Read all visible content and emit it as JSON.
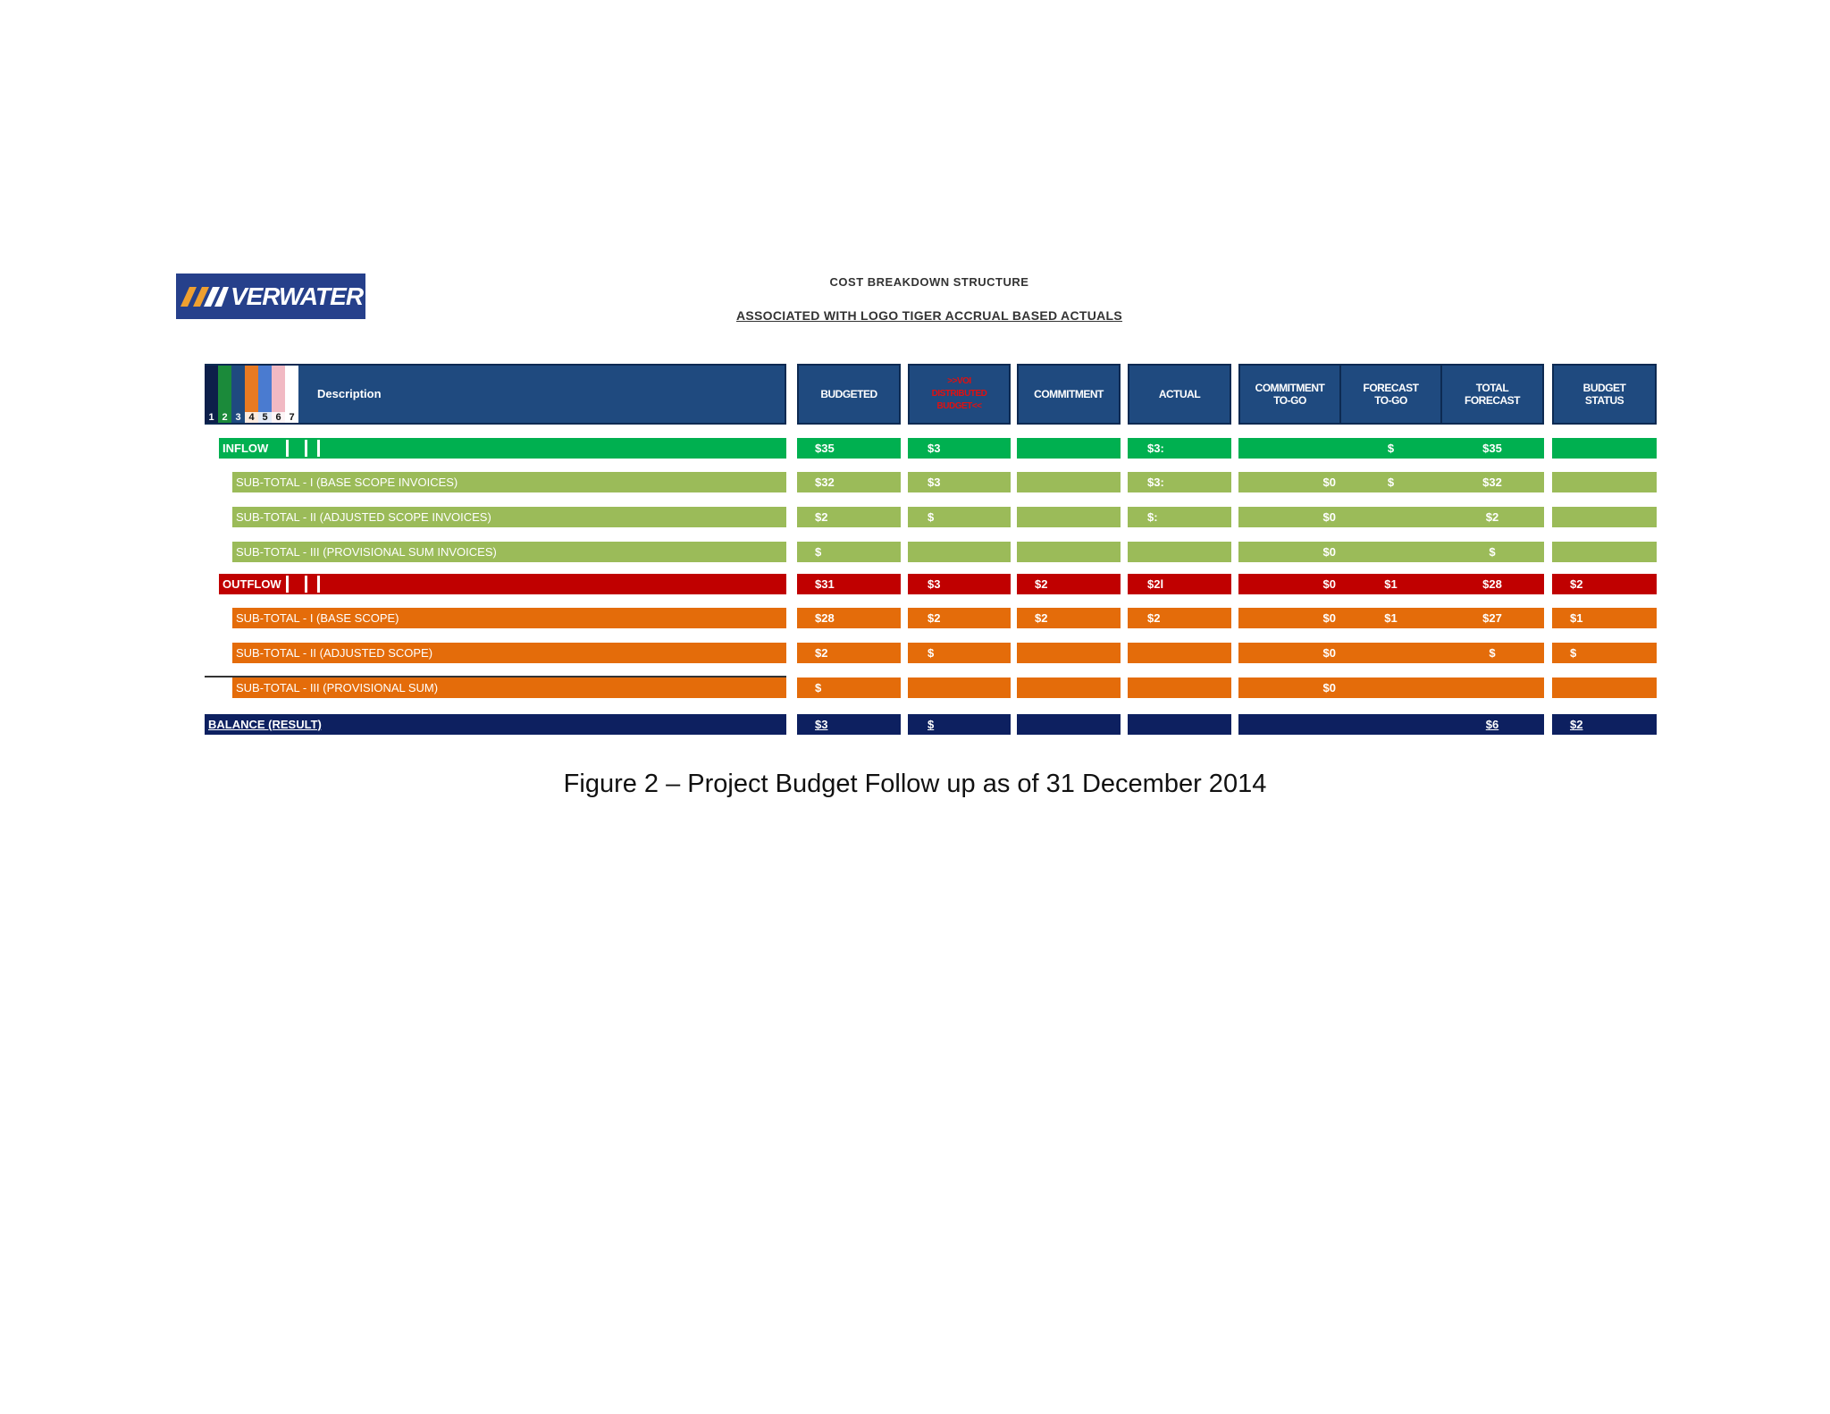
{
  "logo": {
    "text": "VERWATER"
  },
  "titles": {
    "heading": "COST BREAKDOWN STRUCTURE",
    "subheading": "ASSOCIATED WITH LOGO TIGER ACCRUAL BASED ACTUALS"
  },
  "levels": {
    "numbers": [
      "1",
      "2",
      "3",
      "4",
      "5",
      "6",
      "7"
    ],
    "colors": [
      "#0d1f4a",
      "#1b8a3a",
      "#1f4a7f",
      "#e87a22",
      "#4a7bd0",
      "#f1b9c3",
      "#ffffff"
    ]
  },
  "headers": {
    "description": "Description",
    "budgeted": "BUDGETED",
    "vo_line1": ">>VOI",
    "vo_line2": "DISTRIBUTED",
    "vo_line3": "BUDGET<<",
    "commitment": "COMMITMENT",
    "actual": "ACTUAL",
    "commitment_togo_1": "COMMITMENT",
    "commitment_togo_2": "TO-GO",
    "forecast_togo_1": "FORECAST",
    "forecast_togo_2": "TO-GO",
    "total_forecast_1": "TOTAL",
    "total_forecast_2": "FORECAST",
    "budget_status_1": "BUDGET",
    "budget_status_2": "STATUS"
  },
  "colors": {
    "header": "#1f4a7f",
    "inflow": "#00b050",
    "inflow_sub": "#9bbb59",
    "outflow": "#c00000",
    "outflow_sub": "#e46c0a",
    "balance": "#0d2060"
  },
  "rows": [
    {
      "type": "inflow",
      "label": "INFLOW",
      "values": [
        "$35",
        "$3",
        "",
        "$3:",
        "",
        "$",
        "$35",
        ""
      ]
    },
    {
      "type": "inflow_sub",
      "label": "SUB-TOTAL - I (BASE SCOPE INVOICES)",
      "values": [
        "$32",
        "$3",
        "",
        "$3:",
        "$0",
        "$",
        "$32",
        ""
      ]
    },
    {
      "type": "inflow_sub",
      "label": "SUB-TOTAL - II (ADJUSTED SCOPE INVOICES)",
      "values": [
        "$2",
        "$",
        "",
        "$:",
        "$0",
        "",
        "$2",
        ""
      ]
    },
    {
      "type": "inflow_sub",
      "label": "SUB-TOTAL - III (PROVISIONAL SUM INVOICES)",
      "values": [
        "$",
        "",
        "",
        "",
        "$0",
        "",
        "$",
        ""
      ]
    },
    {
      "type": "outflow",
      "label": "OUTFLOW",
      "values": [
        "$31",
        "$3",
        "$2",
        "$2l",
        "$0",
        "$1",
        "$28",
        "$2"
      ]
    },
    {
      "type": "outflow_sub",
      "label": "SUB-TOTAL - I (BASE SCOPE)",
      "values": [
        "$28",
        "$2",
        "$2",
        "$2",
        "$0",
        "$1",
        "$27",
        "$1"
      ]
    },
    {
      "type": "outflow_sub",
      "label": "SUB-TOTAL - II (ADJUSTED SCOPE)",
      "values": [
        "$2",
        "$",
        "",
        "",
        "$0",
        "",
        "$",
        "$"
      ]
    },
    {
      "type": "outflow_sub",
      "label": "SUB-TOTAL - III (PROVISIONAL SUM)",
      "values": [
        "$",
        "",
        "",
        "",
        "$0",
        "",
        "",
        ""
      ]
    },
    {
      "type": "balance",
      "label": "BALANCE (RESULT)",
      "values": [
        "$3",
        "$",
        "",
        "",
        "",
        "",
        "$6",
        "$2"
      ]
    }
  ],
  "caption": "Figure 2 – Project Budget Follow up as of 31 December 2014"
}
